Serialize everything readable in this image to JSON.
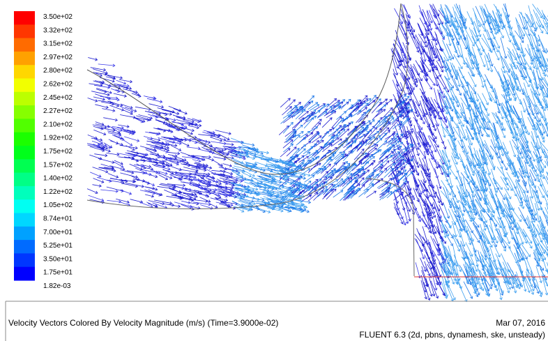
{
  "colorbar": {
    "labels": [
      "3.50e+02",
      "3.32e+02",
      "3.15e+02",
      "2.97e+02",
      "2.80e+02",
      "2.62e+02",
      "2.45e+02",
      "2.27e+02",
      "2.10e+02",
      "1.92e+02",
      "1.75e+02",
      "1.57e+02",
      "1.40e+02",
      "1.22e+02",
      "1.05e+02",
      "8.74e+01",
      "7.00e+01",
      "5.25e+01",
      "3.50e+01",
      "1.75e+01",
      "1.82e-03"
    ]
  },
  "footer": {
    "caption": "Velocity Vectors Colored By Velocity Magnitude (m/s)  (Time=3.9000e-02)",
    "date": "Mar 07, 2016",
    "solver": "FLUENT 6.3 (2d, pbns, dynamesh, ske, unsteady)"
  }
}
